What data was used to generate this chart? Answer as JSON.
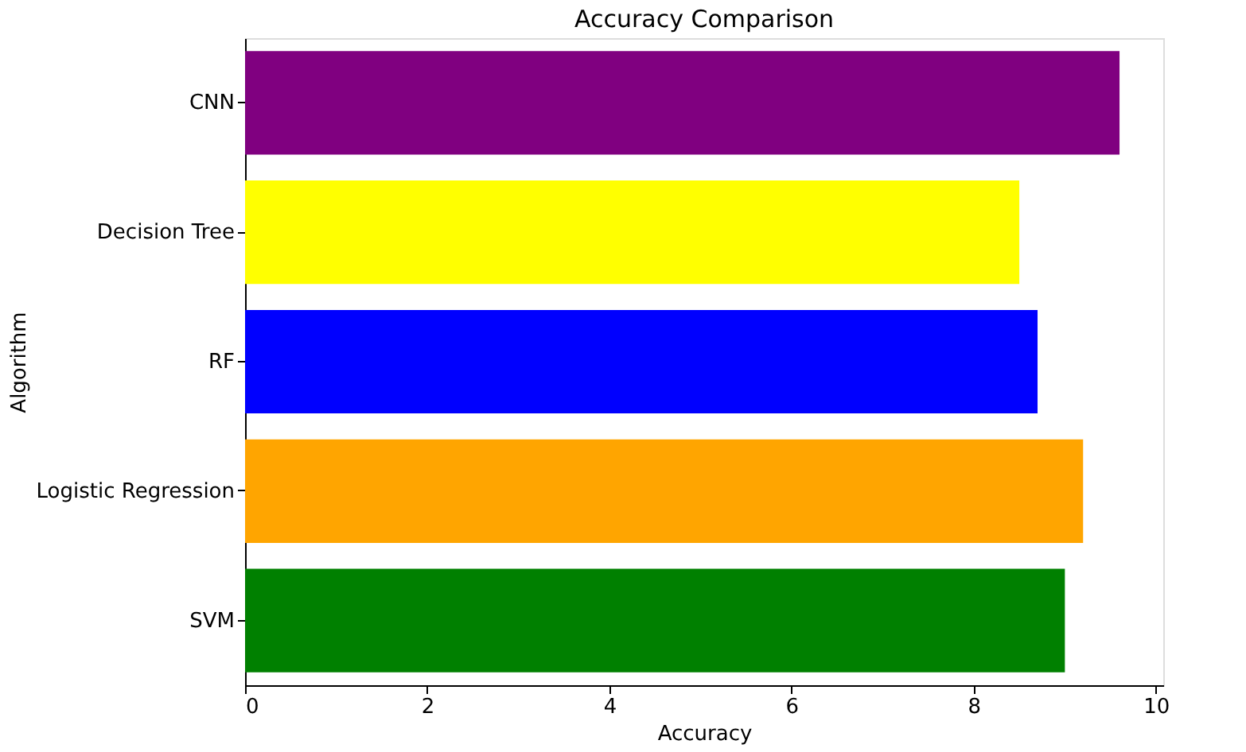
{
  "chart_data": {
    "type": "bar",
    "orientation": "horizontal",
    "title": "Accuracy Comparison",
    "xlabel": "Accuracy",
    "ylabel": "Algorithm",
    "categories": [
      "CNN",
      "Decision Tree",
      "RF",
      "Logistic Regression",
      "SVM"
    ],
    "values": [
      9.6,
      8.5,
      8.7,
      9.2,
      9.0
    ],
    "colors": [
      "#800080",
      "#ffff00",
      "#0000ff",
      "#ffa500",
      "#008000"
    ],
    "xlim": [
      0,
      10.08
    ],
    "xticks": [
      0,
      2,
      4,
      6,
      8,
      10
    ],
    "grid": false
  }
}
